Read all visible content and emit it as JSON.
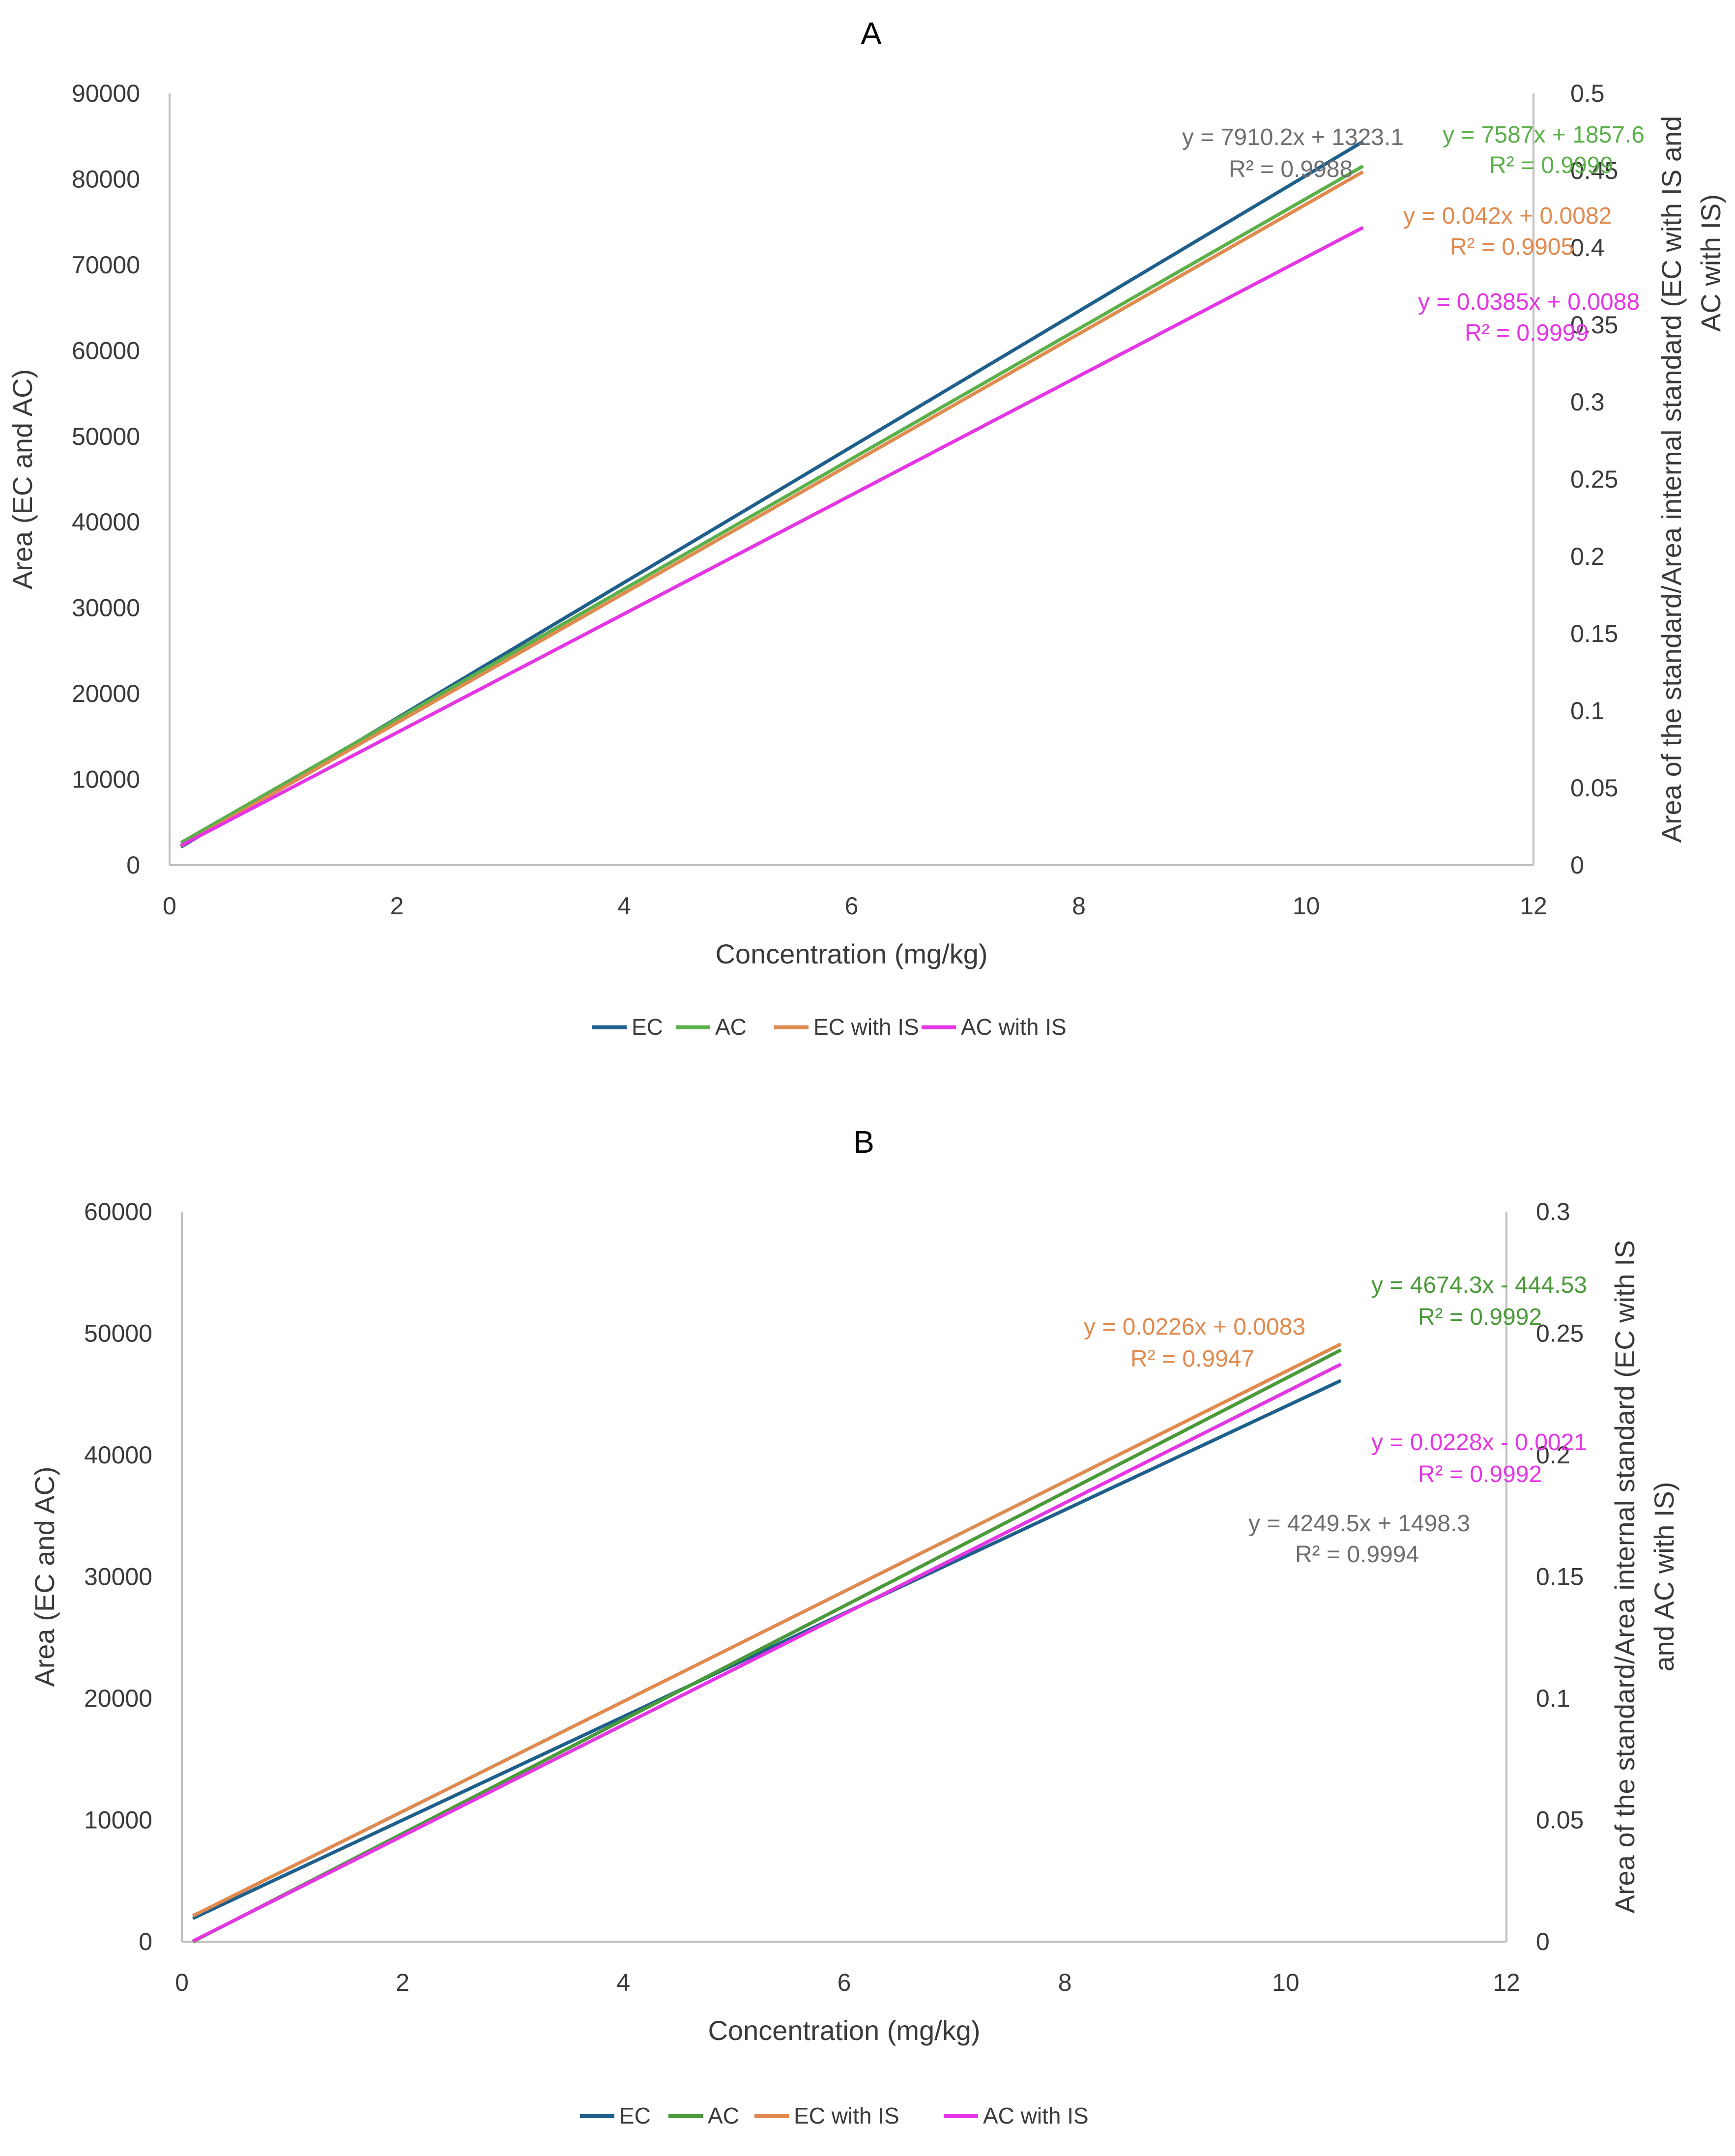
{
  "chart_data": [
    {
      "type": "line",
      "title": "A",
      "xlabel": "Concentration (mg/kg)",
      "ylabel": "Area (EC and AC)",
      "y2label": "Area of the standard/Area internal standard (EC with IS and AC with IS)",
      "xlim": [
        0,
        12
      ],
      "xticks": [
        0,
        2,
        4,
        6,
        8,
        10,
        12
      ],
      "ylim": [
        0,
        90000
      ],
      "yticks": [
        0,
        10000,
        20000,
        30000,
        40000,
        50000,
        60000,
        70000,
        80000,
        90000
      ],
      "y2lim": [
        0,
        0.5
      ],
      "y2ticks": [
        0,
        0.05,
        0.1,
        0.15,
        0.2,
        0.25,
        0.3,
        0.35,
        0.4,
        0.45,
        0.5
      ],
      "legend_position": "bottom",
      "series": [
        {
          "name": "EC",
          "axis": "left",
          "color": "#1f5f8b",
          "x": [
            0.1,
            10.5
          ],
          "y": [
            2114,
            84380
          ],
          "equation": "y = 7910.2x + 1323.1",
          "r2": "R² = 0.9988",
          "eq_color": "#6e6e6e"
        },
        {
          "name": "AC",
          "axis": "left",
          "color": "#5cb04a",
          "x": [
            0.1,
            10.5
          ],
          "y": [
            2616,
            81520
          ],
          "equation": "y = 7587x + 1857.6",
          "r2": "R² = 0.9999",
          "eq_color": "#5cb04a"
        },
        {
          "name": "EC with IS",
          "axis": "right",
          "color": "#e08a4f",
          "x": [
            0.1,
            10.5
          ],
          "y": [
            0.0124,
            0.4492
          ],
          "equation": "y = 0.042x + 0.0082",
          "r2": "R² = 0.9905",
          "eq_color": "#e08a4f"
        },
        {
          "name": "AC with IS",
          "axis": "right",
          "color": "#e535e5",
          "x": [
            0.1,
            10.5
          ],
          "y": [
            0.0127,
            0.4131
          ],
          "equation": "y = 0.0385x + 0.0088",
          "r2": "R² = 0.9999",
          "eq_color": "#e535e5"
        }
      ]
    },
    {
      "type": "line",
      "title": "B",
      "xlabel": "Concentration (mg/kg)",
      "ylabel": "Area (EC and AC)",
      "y2label": "Area of the standard/Area internal standard (EC with IS and AC with IS)",
      "xlim": [
        0,
        12
      ],
      "xticks": [
        0,
        2,
        4,
        6,
        8,
        10,
        12
      ],
      "ylim": [
        0,
        60000
      ],
      "yticks": [
        0,
        10000,
        20000,
        30000,
        40000,
        50000,
        60000
      ],
      "y2lim": [
        0,
        0.3
      ],
      "y2ticks": [
        0,
        0.05,
        0.1,
        0.15,
        0.2,
        0.25,
        0.3
      ],
      "legend_position": "bottom",
      "series": [
        {
          "name": "EC",
          "axis": "left",
          "color": "#1f5f8b",
          "x": [
            0.1,
            10.5
          ],
          "y": [
            1923,
            46118
          ],
          "equation": "y = 4249.5x + 1498.3",
          "r2": "R² = 0.9994",
          "eq_color": "#6e6e6e"
        },
        {
          "name": "AC",
          "axis": "left",
          "color": "#4a9a3a",
          "x": [
            0.1,
            10.5
          ],
          "y": [
            0,
            48635
          ],
          "equation": "y = 4674.3x - 444.53",
          "r2": "R² = 0.9992",
          "eq_color": "#4a9a3a"
        },
        {
          "name": "EC with IS",
          "axis": "right",
          "color": "#e08a4f",
          "x": [
            0.1,
            10.5
          ],
          "y": [
            0.0106,
            0.2456
          ],
          "equation": "y = 0.0226x + 0.0083",
          "r2": "R² = 0.9947",
          "eq_color": "#e08a4f"
        },
        {
          "name": "AC with IS",
          "axis": "right",
          "color": "#e535e5",
          "x": [
            0.1,
            10.5
          ],
          "y": [
            0.0002,
            0.2373
          ],
          "equation": "y = 0.0228x - 0.0021",
          "r2": "R² = 0.9992",
          "eq_color": "#e535e5"
        }
      ]
    }
  ]
}
